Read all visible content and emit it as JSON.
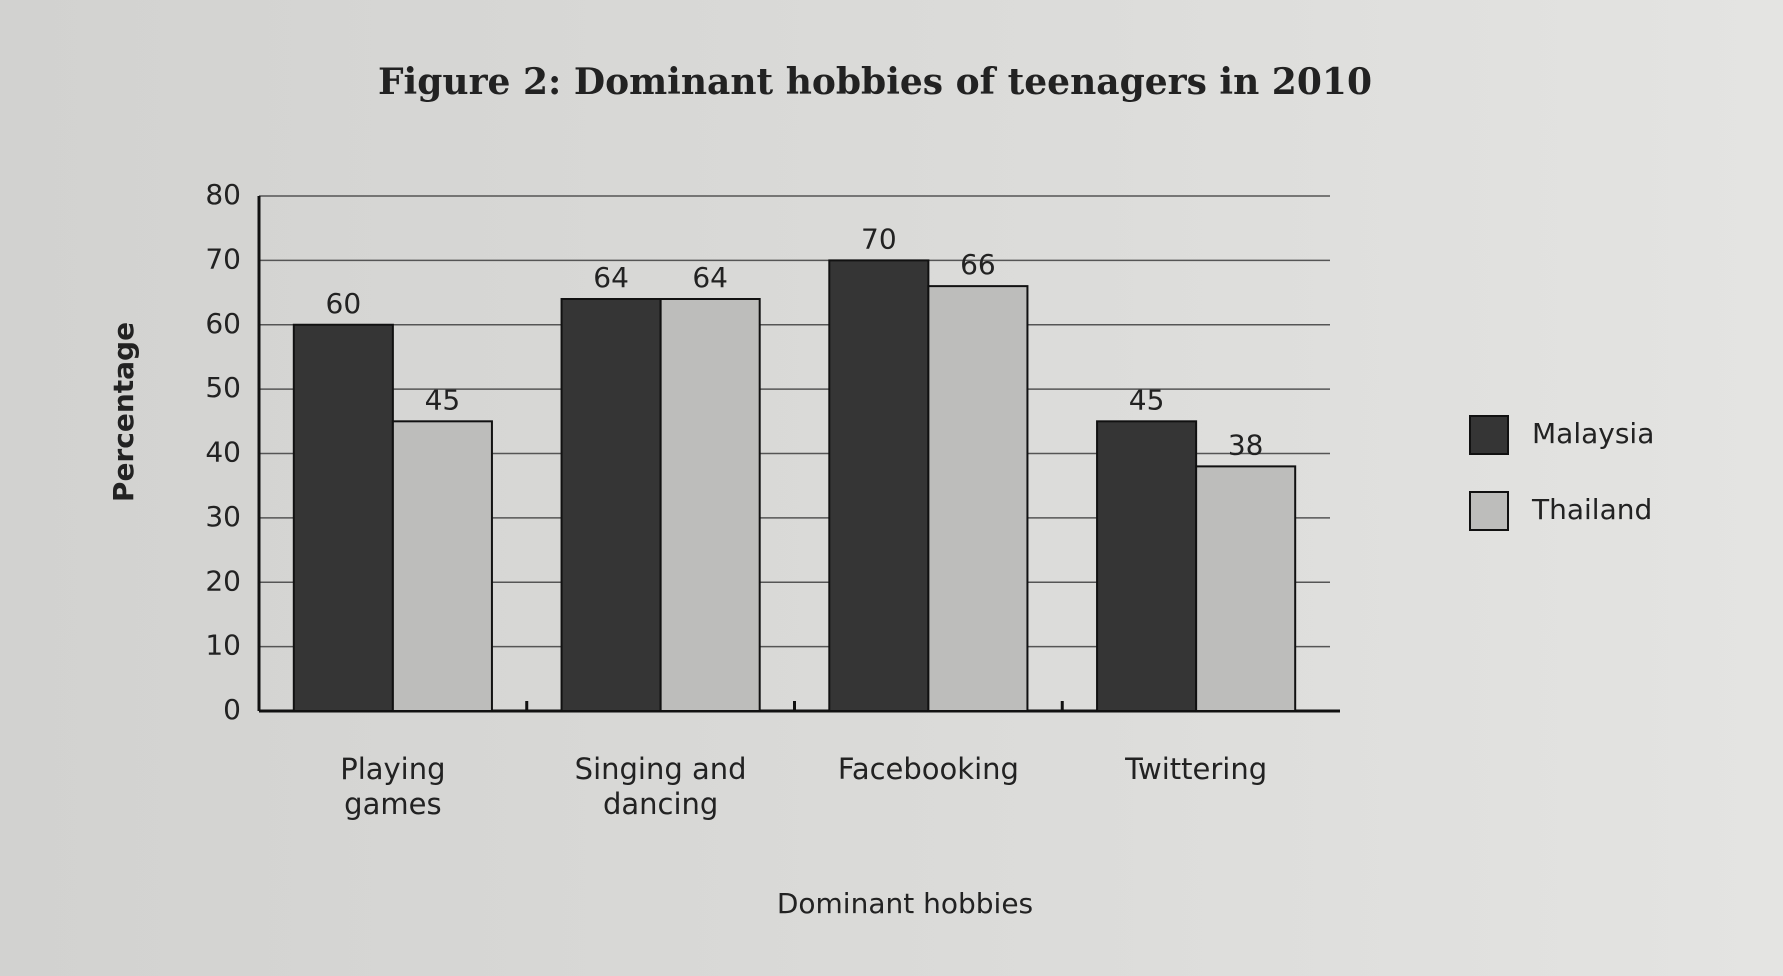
{
  "chart_data": {
    "type": "bar",
    "title": "Figure 2: Dominant hobbies of teenagers in 2010",
    "x_label": "Dominant hobbies",
    "y_label": "Percentage",
    "categories": [
      "Playing games",
      "Singing and dancing",
      "Facebooking",
      "Twittering"
    ],
    "series": [
      {
        "name": "Malaysia",
        "color": "#353535",
        "values": [
          60,
          64,
          70,
          45
        ]
      },
      {
        "name": "Thailand",
        "color": "#bdbdbb",
        "values": [
          45,
          64,
          66,
          38
        ]
      }
    ],
    "ylim": [
      0,
      80
    ],
    "yticks": [
      0,
      10,
      20,
      30,
      40,
      50,
      60,
      70,
      80
    ],
    "grid": true,
    "legend": "right"
  }
}
